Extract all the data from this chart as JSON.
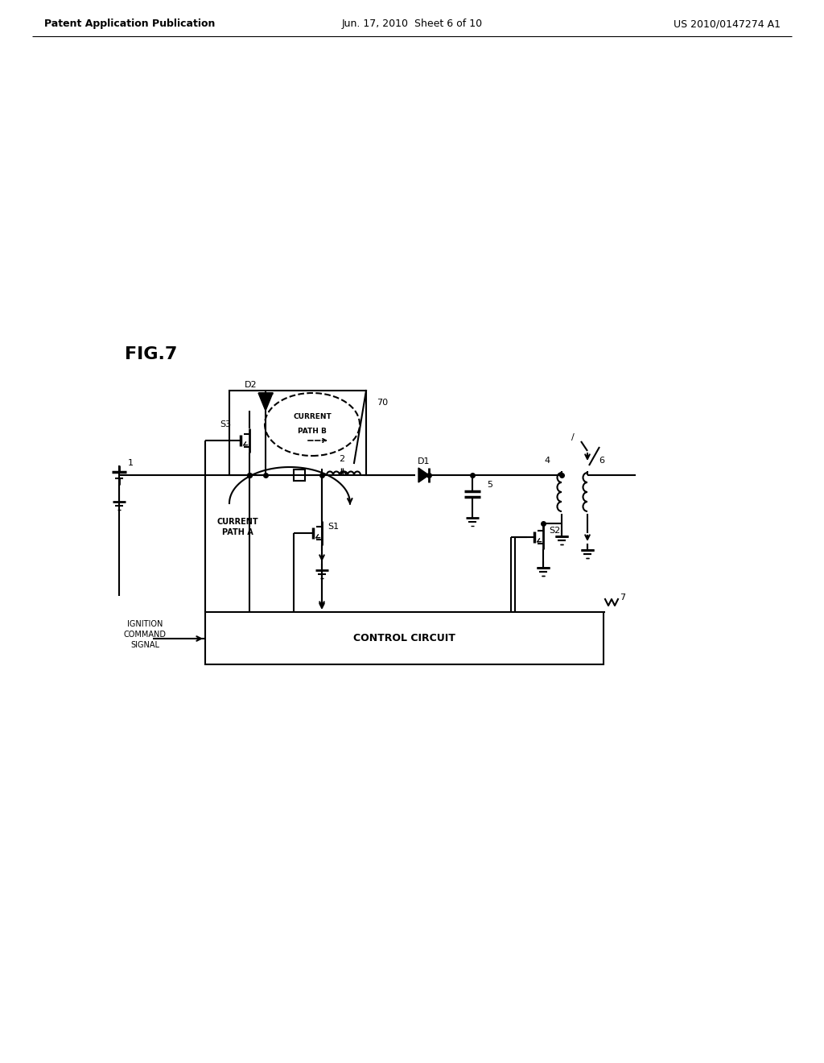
{
  "bg_color": "#ffffff",
  "header_left": "Patent Application Publication",
  "header_center": "Jun. 17, 2010  Sheet 6 of 10",
  "header_right": "US 2010/0147274 A1",
  "fig_label": "FIG.7",
  "line_color": "#000000",
  "font_size_header": 9,
  "font_size_fig": 15
}
